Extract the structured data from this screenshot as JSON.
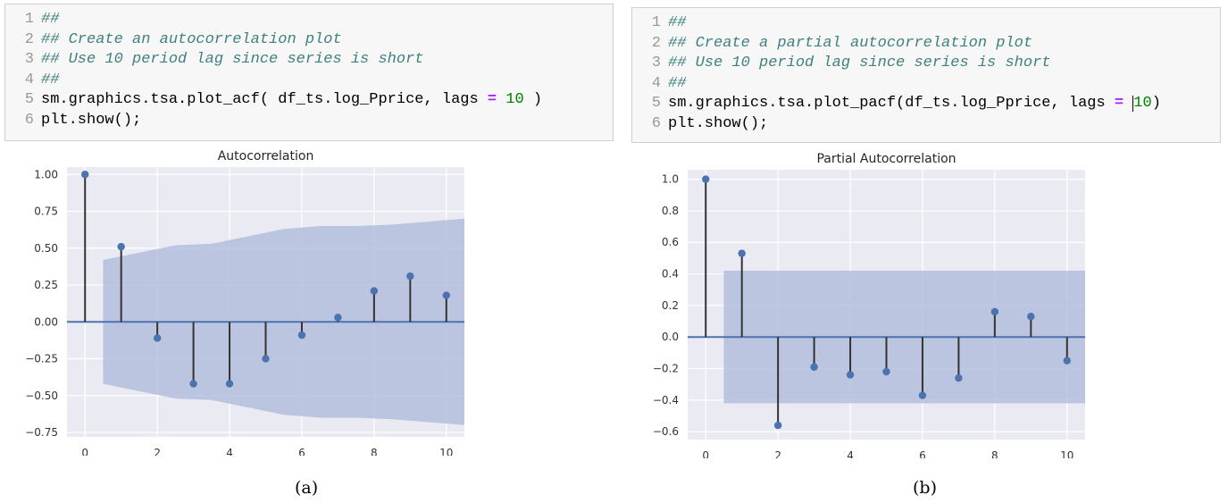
{
  "panels": [
    {
      "code": {
        "lines": [
          {
            "no": "1",
            "tokens": [
              {
                "t": "##",
                "c": "comment"
              }
            ]
          },
          {
            "no": "2",
            "tokens": [
              {
                "t": "## Create an autocorrelation plot",
                "c": "comment"
              }
            ]
          },
          {
            "no": "3",
            "tokens": [
              {
                "t": "## Use 10 period lag since series is short",
                "c": "comment"
              }
            ]
          },
          {
            "no": "4",
            "tokens": [
              {
                "t": "##",
                "c": "comment"
              }
            ]
          },
          {
            "no": "5",
            "tokens": [
              {
                "t": "sm.graphics.tsa.plot_acf( df_ts.log_Pprice, lags ",
                "c": "plain"
              },
              {
                "t": "=",
                "c": "op"
              },
              {
                "t": " ",
                "c": "plain"
              },
              {
                "t": "10",
                "c": "num"
              },
              {
                "t": " )",
                "c": "plain"
              }
            ]
          },
          {
            "no": "6",
            "tokens": [
              {
                "t": "plt.show();",
                "c": "plain"
              }
            ]
          }
        ]
      },
      "caption": "(a)"
    },
    {
      "code": {
        "lines": [
          {
            "no": "1",
            "tokens": [
              {
                "t": "##",
                "c": "comment"
              }
            ]
          },
          {
            "no": "2",
            "tokens": [
              {
                "t": "## Create a partial autocorrelation plot",
                "c": "comment"
              }
            ]
          },
          {
            "no": "3",
            "tokens": [
              {
                "t": "## Use 10 period lag since series is short",
                "c": "comment"
              }
            ]
          },
          {
            "no": "4",
            "tokens": [
              {
                "t": "##",
                "c": "comment"
              }
            ]
          },
          {
            "no": "5",
            "tokens": [
              {
                "t": "sm.graphics.tsa.plot_pacf(df_ts.log_Pprice, lags ",
                "c": "plain"
              },
              {
                "t": "=",
                "c": "op"
              },
              {
                "t": " ",
                "c": "plain"
              },
              {
                "t": "caret",
                "c": "caret"
              },
              {
                "t": "10",
                "c": "num"
              },
              {
                "t": ")",
                "c": "plain"
              }
            ]
          },
          {
            "no": "6",
            "tokens": [
              {
                "t": "plt.show();",
                "c": "plain"
              }
            ]
          }
        ]
      },
      "caption": "(b)"
    }
  ],
  "chart_data": [
    {
      "type": "stem",
      "title": "Autocorrelation",
      "xlabel": "",
      "ylabel": "",
      "x": [
        0,
        1,
        2,
        3,
        4,
        5,
        6,
        7,
        8,
        9,
        10
      ],
      "values": [
        1.0,
        0.51,
        -0.11,
        -0.42,
        -0.42,
        -0.25,
        -0.09,
        0.03,
        0.21,
        0.31,
        0.18
      ],
      "confidence_band": {
        "x": [
          0.5,
          1.5,
          2.5,
          3.5,
          4.5,
          5.5,
          6.5,
          7.5,
          8.5,
          9.5,
          10.5
        ],
        "upper": [
          0.42,
          0.47,
          0.52,
          0.53,
          0.58,
          0.63,
          0.65,
          0.65,
          0.66,
          0.68,
          0.7
        ]
      },
      "xlim": [
        -0.5,
        10.5
      ],
      "ylim": [
        -0.78,
        1.05
      ],
      "xticks": [
        0,
        2,
        4,
        6,
        8,
        10
      ],
      "xtick_labels": [
        "0",
        "2",
        "4",
        "6",
        "8",
        "10"
      ],
      "yticks": [
        1.0,
        0.75,
        0.5,
        0.25,
        0.0,
        -0.25,
        -0.5,
        -0.75
      ],
      "ytick_labels": [
        "1.00",
        "0.75",
        "0.50",
        "0.25",
        "0.00",
        "−0.25",
        "−0.50",
        "−0.75"
      ],
      "grid": true,
      "colors": {
        "marker": "#4c72b0",
        "stem": "#333333",
        "band": "#b4bedd",
        "background": "#eaeaf2",
        "baseline": "#4c72b0"
      }
    },
    {
      "type": "stem",
      "title": "Partial Autocorrelation",
      "xlabel": "",
      "ylabel": "",
      "x": [
        0,
        1,
        2,
        3,
        4,
        5,
        6,
        7,
        8,
        9,
        10
      ],
      "values": [
        1.0,
        0.53,
        -0.56,
        -0.19,
        -0.24,
        -0.22,
        -0.37,
        -0.26,
        0.16,
        0.13,
        -0.15
      ],
      "confidence_band": {
        "x": [
          0.5,
          10.5
        ],
        "upper": [
          0.42,
          0.42
        ]
      },
      "xlim": [
        -0.5,
        10.5
      ],
      "ylim": [
        -0.65,
        1.06
      ],
      "xticks": [
        0,
        2,
        4,
        6,
        8,
        10
      ],
      "xtick_labels": [
        "0",
        "2",
        "4",
        "6",
        "8",
        "10"
      ],
      "yticks": [
        1.0,
        0.8,
        0.6,
        0.4,
        0.2,
        0.0,
        -0.2,
        -0.4,
        -0.6
      ],
      "ytick_labels": [
        "1.0",
        "0.8",
        "0.6",
        "0.4",
        "0.2",
        "0.0",
        "−0.2",
        "−0.4",
        "−0.6"
      ],
      "grid": true,
      "colors": {
        "marker": "#4c72b0",
        "stem": "#333333",
        "band": "#b4bedd",
        "background": "#eaeaf2",
        "baseline": "#4c72b0"
      }
    }
  ]
}
